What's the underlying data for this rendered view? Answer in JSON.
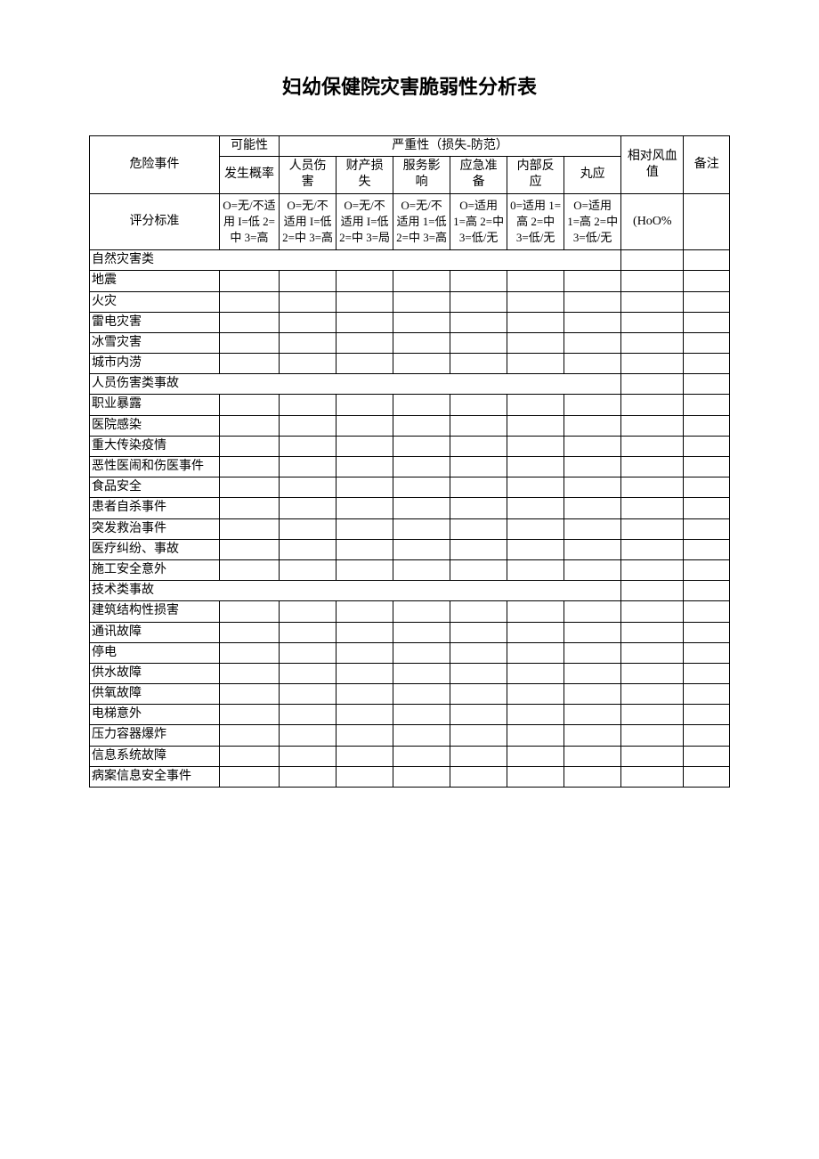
{
  "title": "妇幼保健院灾害脆弱性分析表",
  "headers": {
    "risk_event": "危险事件",
    "probability": "可能性",
    "severity": "严重性（损失-防范）",
    "relative_risk": "相对风血值",
    "note": "备注",
    "prob_rate": "发生概率",
    "injury": "人员伤害",
    "property": "财产损失",
    "service": "服务影响",
    "emergency": "应急准备",
    "internal": "内部反应",
    "other": "丸应",
    "criteria_label": "评分标准",
    "crit_prob": "O=无/不适用 I=低 2=中 3=高",
    "crit_injury": "O=无/不适用 I=低 2=中 3=高",
    "crit_property": "O=无/不适用 I=低 2=中 3=局",
    "crit_service": "O=无/不适用 1=低 2=中 3=高",
    "crit_emergency": "O=适用 1=高 2=中 3=低/无",
    "crit_internal": "0=适用 1=高 2=中 3=低/无",
    "crit_other": "O=适用 1=高 2=中 3=低/无",
    "crit_risk": "(HoO%"
  },
  "categories": [
    {
      "name": "自然灾害类",
      "items": [
        "地震",
        "火灾",
        "雷电灾害",
        "冰雪灾害",
        "城市内涝"
      ]
    },
    {
      "name": "人员伤害类事故",
      "items": [
        "职业暴露",
        "医院感染",
        "重大传染疫情",
        "恶性医闹和伤医事件",
        "食品安全",
        "患者自杀事件",
        "突发救治事件",
        "医疗纠纷、事故",
        "施工安全意外"
      ]
    },
    {
      "name": "技术类事故",
      "items": [
        "建筑结构性损害",
        "通讯故障",
        "停电",
        "供水故障",
        "供氧故障",
        "电梯意外",
        "压力容器爆炸",
        "信息系统故障",
        "病案信息安全事件"
      ]
    }
  ]
}
